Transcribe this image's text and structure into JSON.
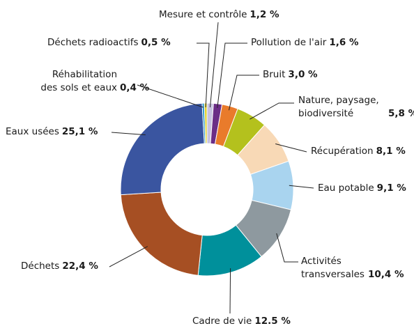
{
  "chart_data": {
    "type": "donut",
    "categories": [
      "Mesure et contrôle",
      "Pollution de l'air",
      "Bruit",
      "Nature, paysage, biodiversité",
      "Récupération",
      "Eau potable",
      "Activités transversales",
      "Cadre de vie",
      "Déchets",
      "Eaux usées",
      "Réhabilitation des sols et eaux",
      "Déchets radioactifs"
    ],
    "values": [
      1.2,
      1.6,
      3.0,
      5.8,
      8.1,
      9.1,
      10.4,
      12.5,
      22.4,
      25.1,
      0.4,
      0.5
    ],
    "value_labels": [
      "1,2 %",
      "1,6 %",
      "3,0 %",
      "5,8 %",
      "8,1 %",
      "9,1 %",
      "10,4 %",
      "12.5 %",
      "22,4 %",
      "25,1 %",
      "0,4 %",
      "0,5 %"
    ],
    "colors": [
      "#c8c2e0",
      "#6b2d86",
      "#e97b2b",
      "#b4c11d",
      "#f8d9b6",
      "#a9d4ef",
      "#8e999f",
      "#00909b",
      "#a64f23",
      "#3a55a0",
      "#1e8fca",
      "#e2d22f"
    ]
  }
}
